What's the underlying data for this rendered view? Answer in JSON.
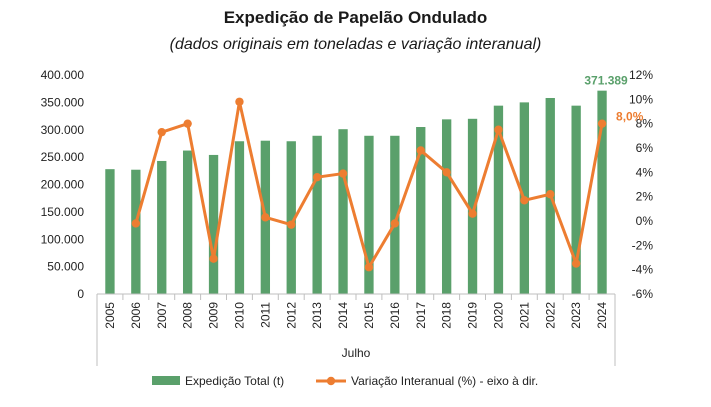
{
  "chart_data": {
    "type": "bar",
    "title": "Expedição de Papelão Ondulado",
    "subtitle": "(dados originais em toneladas e variação interanual)",
    "categories": [
      "2005",
      "2006",
      "2007",
      "2008",
      "2009",
      "2010",
      "2011",
      "2012",
      "2013",
      "2014",
      "2015",
      "2016",
      "2017",
      "2018",
      "2019",
      "2020",
      "2021",
      "2022",
      "2023",
      "2024"
    ],
    "category_axis_title": "Julho",
    "left_axis": {
      "ylim": [
        0,
        400000
      ],
      "ticks": [
        "0",
        "50.000",
        "100.000",
        "150.000",
        "200.000",
        "250.000",
        "300.000",
        "350.000",
        "400.000"
      ]
    },
    "right_axis": {
      "ylim": [
        -6,
        12
      ],
      "ticks": [
        "-6%",
        "-4%",
        "-2%",
        "0%",
        "2%",
        "4%",
        "6%",
        "8%",
        "10%",
        "12%"
      ]
    },
    "series": [
      {
        "name": "Expedição Total (t)",
        "type": "bar",
        "axis": "left",
        "color": "#5aa06b",
        "values": [
          228000,
          227000,
          243000,
          262000,
          254000,
          279000,
          280000,
          279000,
          289000,
          301000,
          289000,
          289000,
          305000,
          319000,
          320000,
          344000,
          350000,
          358000,
          344000,
          371389
        ]
      },
      {
        "name": "Variação Interanual (%) - eixo à dir.",
        "type": "line",
        "axis": "right",
        "color": "#ed7d31",
        "values": [
          null,
          -0.2,
          7.3,
          8.0,
          -3.1,
          9.8,
          0.3,
          -0.3,
          3.6,
          3.9,
          -3.8,
          -0.2,
          5.8,
          4.0,
          0.6,
          7.5,
          1.7,
          2.2,
          -3.5,
          8.0
        ]
      }
    ],
    "data_labels": {
      "last_bar": "371.389",
      "last_point": "8,0%"
    },
    "legend_position": "bottom",
    "grid": false
  }
}
